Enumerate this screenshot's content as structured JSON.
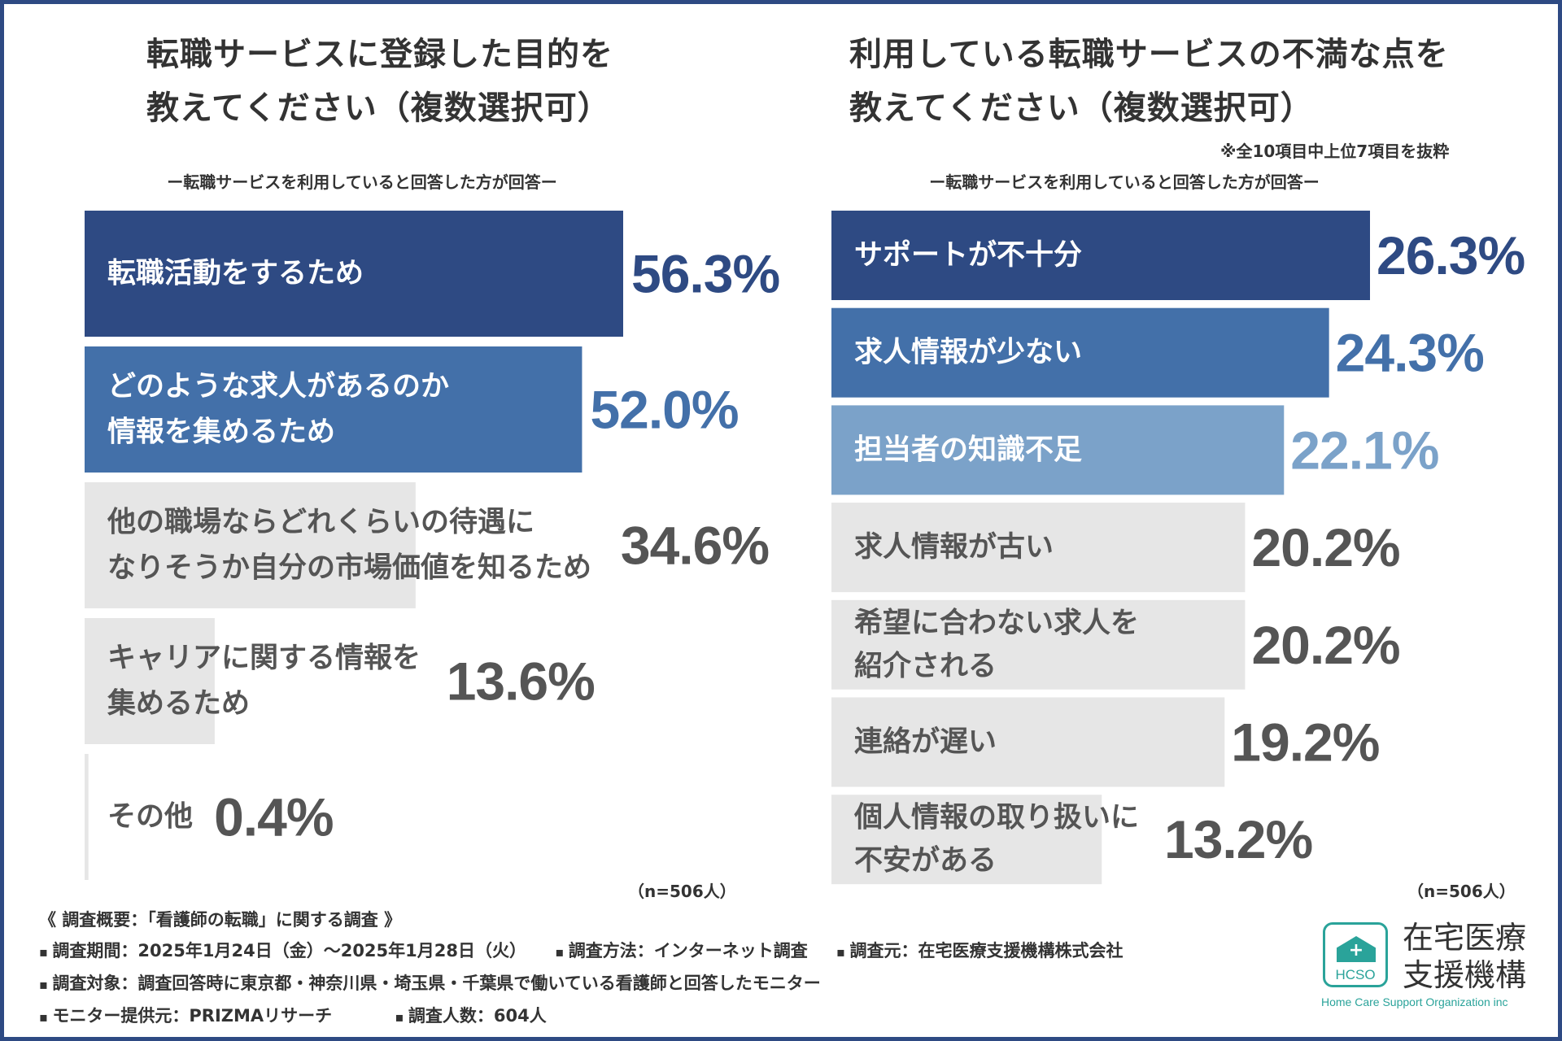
{
  "chart_data": [
    {
      "type": "bar",
      "title_lines": [
        "転職サービスに登録した目的を",
        "教えてください（複数選択可）"
      ],
      "subtitle": "ー転職サービスを利用していると回答した方が回答ー",
      "categories": [
        [
          "転職活動をするため"
        ],
        [
          "どのような求人があるのか",
          "情報を集めるため"
        ],
        [
          "他の職場ならどれくらいの待遇に",
          "なりそうか自分の市場価値を知るため"
        ],
        [
          "キャリアに関する情報を",
          "集めるため"
        ],
        [
          "その他"
        ]
      ],
      "values": [
        56.3,
        52.0,
        34.6,
        13.6,
        0.4
      ],
      "value_labels": [
        "56.3%",
        "52.0%",
        "34.6%",
        "13.6%",
        "0.4%"
      ],
      "bar_colors": [
        "#2e4a83",
        "#4370a9",
        "#e6e6e6",
        "#e6e6e6",
        "#e6e6e6"
      ],
      "text_colors": [
        "#ffffff",
        "#ffffff",
        "#555555",
        "#555555",
        "#555555"
      ],
      "value_colors": [
        "#2e4a83",
        "#4370a9",
        "#555555",
        "#555555",
        "#555555"
      ],
      "xlim": [
        0,
        56.3
      ],
      "n_label": "（n=506人）"
    },
    {
      "type": "bar",
      "title_lines": [
        "利用している転職サービスの不満な点を",
        "教えてください（複数選択可）"
      ],
      "note": "※全10項目中上位7項目を抜粋",
      "subtitle": "ー転職サービスを利用していると回答した方が回答ー",
      "categories": [
        [
          "サポートが不十分"
        ],
        [
          "求人情報が少ない"
        ],
        [
          "担当者の知識不足"
        ],
        [
          "求人情報が古い"
        ],
        [
          "希望に合わない求人を",
          "紹介される"
        ],
        [
          "連絡が遅い"
        ],
        [
          "個人情報の取り扱いに",
          "不安がある"
        ]
      ],
      "values": [
        26.3,
        24.3,
        22.1,
        20.2,
        20.2,
        19.2,
        13.2
      ],
      "value_labels": [
        "26.3%",
        "24.3%",
        "22.1%",
        "20.2%",
        "20.2%",
        "19.2%",
        "13.2%"
      ],
      "bar_colors": [
        "#2e4a83",
        "#4370a9",
        "#7ba2c9",
        "#e6e6e6",
        "#e6e6e6",
        "#e6e6e6",
        "#e6e6e6"
      ],
      "text_colors": [
        "#ffffff",
        "#ffffff",
        "#ffffff",
        "#555555",
        "#555555",
        "#555555",
        "#555555"
      ],
      "value_colors": [
        "#2e4a83",
        "#4370a9",
        "#7ba2c9",
        "#555555",
        "#555555",
        "#555555",
        "#555555"
      ],
      "xlim": [
        0,
        26.3
      ],
      "n_label": "（n=506人）"
    }
  ],
  "footer": {
    "heading": "《 調査概要：「看護師の転職」に関する調査 》",
    "period": "調査期間：2025年1月24日（金）～2025年1月28日（火）",
    "method": "調査方法：インターネット調査",
    "source": "調査元：在宅医療支援機構株式会社",
    "target": "調査対象：調査回答時に東京都・神奈川県・埼玉県・千葉県で働いている看護師と回答したモニター",
    "provider": "モニター提供元：PRIZMAリサーチ",
    "count": "調査人数：604人"
  },
  "logo": {
    "abbr": "HCSO",
    "name_line1": "在宅医療",
    "name_line2": "支援機構",
    "english": "Home Care Support Organization inc"
  },
  "colors": {
    "frame": "#2e4a83",
    "teal": "#2aa39a"
  }
}
